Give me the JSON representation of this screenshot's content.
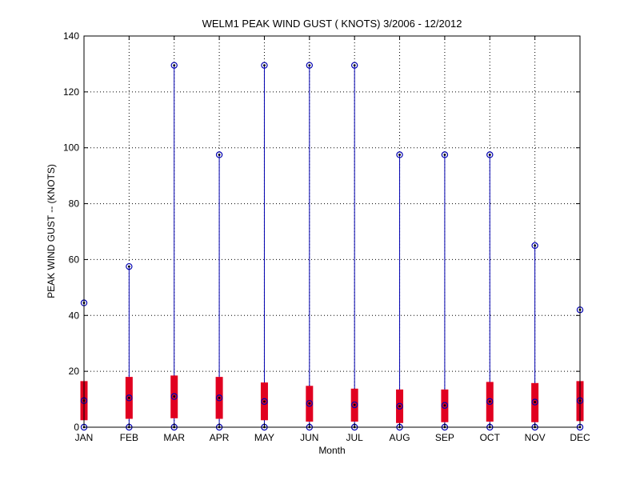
{
  "chart_data": {
    "type": "box",
    "title": "WELM1  PEAK WIND GUST ( KNOTS) 3/2006 - 12/2012",
    "xlabel": "Month",
    "ylabel": "PEAK WIND GUST -- (KNOTS)",
    "ylim": [
      0,
      140
    ],
    "yticks": [
      "0",
      "20",
      "40",
      "60",
      "80",
      "100",
      "120",
      "140"
    ],
    "grid": true,
    "categories": [
      "JAN",
      "FEB",
      "MAR",
      "APR",
      "MAY",
      "JUN",
      "JUL",
      "AUG",
      "SEP",
      "OCT",
      "NOV",
      "DEC"
    ],
    "series": [
      {
        "role": "max",
        "values": [
          44.5,
          57.5,
          129.5,
          97.5,
          129.5,
          129.5,
          129.5,
          97.5,
          97.5,
          97.5,
          65,
          42
        ]
      },
      {
        "role": "upper_box",
        "values": [
          16.5,
          18,
          18.5,
          18,
          16,
          14.8,
          13.8,
          13.5,
          13.5,
          16.2,
          15.8,
          16.5
        ]
      },
      {
        "role": "median",
        "values": [
          9.5,
          10.5,
          11,
          10.5,
          9.2,
          8.5,
          8,
          7.5,
          7.8,
          9.2,
          9,
          9.5
        ]
      },
      {
        "role": "lower_box",
        "values": [
          2.5,
          3,
          3.2,
          3,
          2.5,
          2,
          2,
          1.5,
          1.8,
          2,
          1.8,
          2.2
        ]
      },
      {
        "role": "min",
        "values": [
          0,
          0,
          0,
          0,
          0,
          0,
          0,
          0,
          0,
          0,
          0,
          0
        ]
      }
    ],
    "colors": {
      "whisker": "#0000b0",
      "box": "#e10020",
      "marker": "#000000",
      "grid": "#000000"
    }
  }
}
